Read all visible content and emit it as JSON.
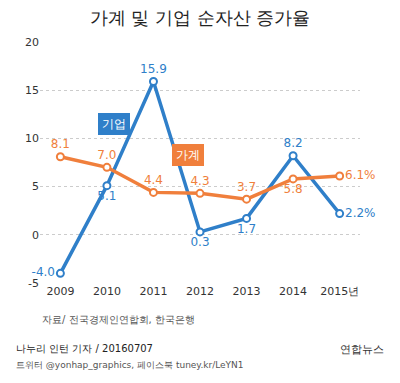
{
  "chart_data": {
    "type": "line",
    "title": "가계 및 기업 순자산 증가율",
    "categories": [
      "2009",
      "2010",
      "2011",
      "2012",
      "2013",
      "2014",
      "2015년"
    ],
    "series": [
      {
        "name": "기업",
        "color": "#2f7fc9",
        "marker": "circle",
        "values": [
          -4.0,
          5.1,
          15.9,
          0.3,
          1.7,
          8.2,
          2.2
        ],
        "value_labels": [
          "-4.0",
          "5.1",
          "15.9",
          "0.3",
          "1.7",
          "8.2",
          "2.2%"
        ]
      },
      {
        "name": "가계",
        "color": "#f07f3c",
        "marker": "circle",
        "values": [
          8.1,
          7.0,
          4.4,
          4.3,
          3.7,
          5.8,
          6.1
        ],
        "value_labels": [
          "8.1",
          "7.0",
          "4.4",
          "4.3",
          "3.7",
          "5.8",
          "6.1%"
        ]
      }
    ],
    "ylim": [
      -5,
      20
    ],
    "yticks": [
      -5,
      0,
      5,
      10,
      15,
      20
    ],
    "grid": true,
    "data_labels": true,
    "source": "자료/ 전국경제인연합회, 한국은행",
    "byline": "나누리 인턴 기자 / 20160707",
    "social": "트위터 @yonhap_graphics, 페이스북 tuney.kr/LeYN1",
    "publisher": "연합뉴스"
  }
}
